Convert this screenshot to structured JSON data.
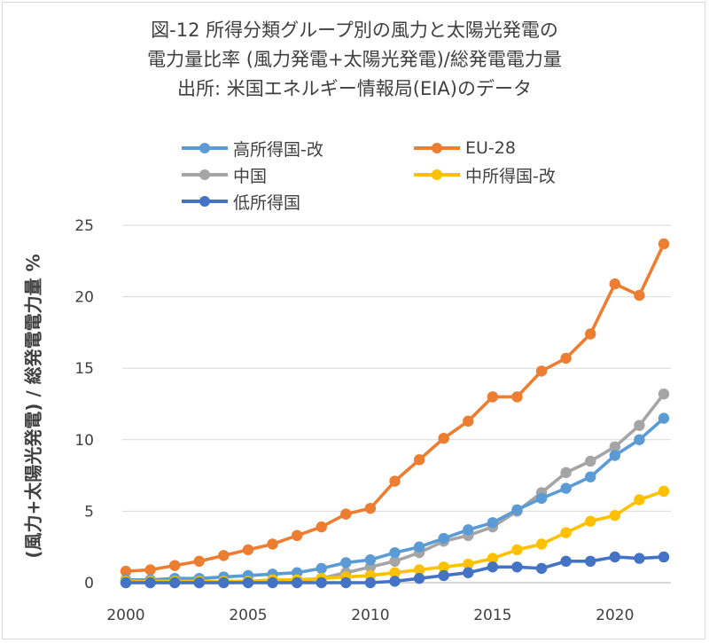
{
  "title_lines": [
    "図-12  所得分類グループ別の風力と太陽光発電の",
    "電力量比率  (風力発電+太陽光発電)/総発電電力量",
    "出所: 米国エネルギー情報局(EIA)のデータ"
  ],
  "chart_data": {
    "type": "line",
    "title": "図-12  所得分類グループ別の風力と太陽光発電の 電力量比率  (風力発電+太陽光発電)/総発電電力量",
    "subtitle": "出所: 米国エネルギー情報局(EIA)のデータ",
    "xlabel": "",
    "ylabel": "(風力+太陽光発電) / 総発電電力量  %",
    "xlim": [
      2000,
      2022
    ],
    "ylim": [
      0,
      25
    ],
    "x_ticks": [
      2000,
      2005,
      2010,
      2015,
      2020
    ],
    "y_ticks": [
      0,
      5,
      10,
      15,
      20,
      25
    ],
    "grid": "horizontal",
    "legend_position": "top",
    "x": [
      2000,
      2001,
      2002,
      2003,
      2004,
      2005,
      2006,
      2007,
      2008,
      2009,
      2010,
      2011,
      2012,
      2013,
      2014,
      2015,
      2016,
      2017,
      2018,
      2019,
      2020,
      2021,
      2022
    ],
    "series": [
      {
        "name": "高所得国-改",
        "color": "#5b9bd5",
        "values": [
          0.2,
          0.2,
          0.3,
          0.3,
          0.4,
          0.5,
          0.6,
          0.7,
          1.0,
          1.4,
          1.6,
          2.1,
          2.5,
          3.1,
          3.7,
          4.2,
          5.1,
          5.9,
          6.6,
          7.4,
          8.9,
          10.0,
          11.5
        ]
      },
      {
        "name": "EU-28",
        "color": "#ed7d31",
        "values": [
          0.8,
          0.9,
          1.2,
          1.5,
          1.9,
          2.3,
          2.7,
          3.3,
          3.9,
          4.8,
          5.2,
          7.1,
          8.6,
          10.1,
          11.3,
          13.0,
          13.0,
          14.8,
          15.7,
          17.4,
          20.9,
          20.1,
          23.7
        ]
      },
      {
        "name": "中国",
        "color": "#a5a5a5",
        "values": [
          0.0,
          0.0,
          0.0,
          0.0,
          0.0,
          0.1,
          0.1,
          0.1,
          0.3,
          0.7,
          1.1,
          1.5,
          2.1,
          2.9,
          3.3,
          3.9,
          5.0,
          6.3,
          7.7,
          8.5,
          9.5,
          11.0,
          13.2
        ]
      },
      {
        "name": "中所得国-改",
        "color": "#ffc000",
        "values": [
          0.1,
          0.1,
          0.1,
          0.1,
          0.1,
          0.1,
          0.2,
          0.2,
          0.3,
          0.4,
          0.5,
          0.7,
          0.9,
          1.1,
          1.3,
          1.7,
          2.3,
          2.7,
          3.5,
          4.3,
          4.7,
          5.8,
          6.4
        ]
      },
      {
        "name": "低所得国",
        "color": "#4472c4",
        "values": [
          0.0,
          0.0,
          0.0,
          0.0,
          0.0,
          0.0,
          0.0,
          0.0,
          0.0,
          0.0,
          0.0,
          0.1,
          0.3,
          0.5,
          0.7,
          1.1,
          1.1,
          1.0,
          1.5,
          1.5,
          1.8,
          1.7,
          1.8
        ]
      }
    ]
  }
}
